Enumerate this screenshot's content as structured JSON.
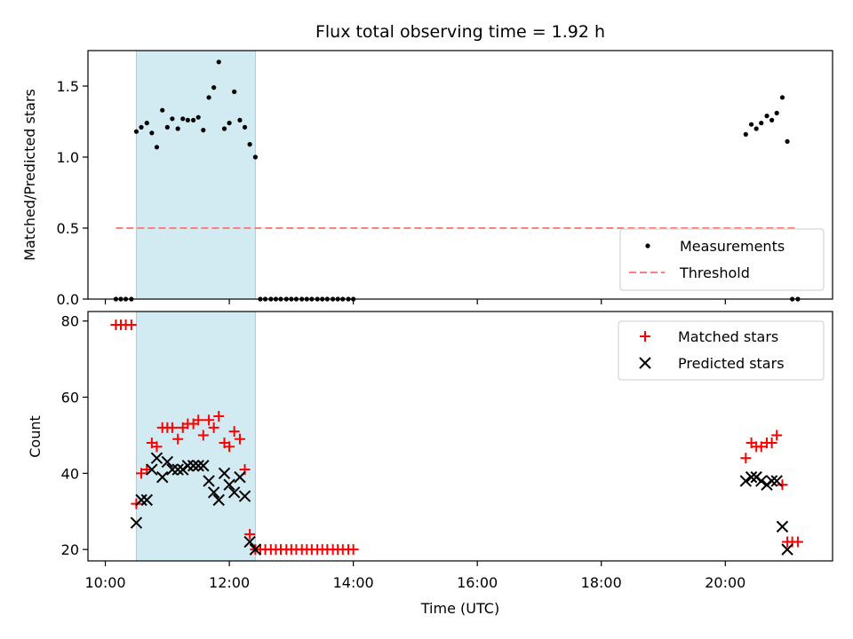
{
  "chart_data": {
    "type": "scatter",
    "title": "Flux total observing time = 1.92 h",
    "xlabel": "Time (UTC)",
    "x_unit": "hours UTC",
    "x_ticks": [
      "10:00",
      "12:00",
      "14:00",
      "16:00",
      "18:00",
      "20:00"
    ],
    "x_tick_values": [
      10,
      12,
      14,
      16,
      18,
      20
    ],
    "xlim": [
      9.72,
      21.73
    ],
    "shaded_interval": [
      10.5,
      12.42
    ],
    "shade_color": "#add8e6",
    "panels": [
      {
        "name": "ratio",
        "ylabel": "Matched/Predicted stars",
        "ylim": [
          0.0,
          1.75
        ],
        "y_ticks": [
          "0.0",
          "0.5",
          "1.0",
          "1.5"
        ],
        "y_tick_values": [
          0.0,
          0.5,
          1.0,
          1.5
        ],
        "legend_position": "lower right",
        "series": [
          {
            "name": "Measurements",
            "marker": "dot",
            "color": "#000000",
            "points": [
              [
                10.17,
                0
              ],
              [
                10.25,
                0
              ],
              [
                10.33,
                0
              ],
              [
                10.42,
                0
              ],
              [
                10.5,
                1.18
              ],
              [
                10.58,
                1.21
              ],
              [
                10.67,
                1.24
              ],
              [
                10.75,
                1.17
              ],
              [
                10.83,
                1.07
              ],
              [
                10.92,
                1.33
              ],
              [
                11.0,
                1.21
              ],
              [
                11.08,
                1.27
              ],
              [
                11.17,
                1.2
              ],
              [
                11.25,
                1.27
              ],
              [
                11.33,
                1.26
              ],
              [
                11.42,
                1.26
              ],
              [
                11.5,
                1.28
              ],
              [
                11.58,
                1.19
              ],
              [
                11.67,
                1.42
              ],
              [
                11.75,
                1.49
              ],
              [
                11.83,
                1.67
              ],
              [
                11.92,
                1.2
              ],
              [
                12.0,
                1.24
              ],
              [
                12.08,
                1.46
              ],
              [
                12.17,
                1.26
              ],
              [
                12.25,
                1.21
              ],
              [
                12.33,
                1.09
              ],
              [
                12.42,
                1.0
              ],
              [
                12.5,
                0
              ],
              [
                12.58,
                0
              ],
              [
                12.67,
                0
              ],
              [
                12.75,
                0
              ],
              [
                12.83,
                0
              ],
              [
                12.92,
                0
              ],
              [
                13.0,
                0
              ],
              [
                13.08,
                0
              ],
              [
                13.17,
                0
              ],
              [
                13.25,
                0
              ],
              [
                13.33,
                0
              ],
              [
                13.42,
                0
              ],
              [
                13.5,
                0
              ],
              [
                13.58,
                0
              ],
              [
                13.67,
                0
              ],
              [
                13.75,
                0
              ],
              [
                13.83,
                0
              ],
              [
                13.92,
                0
              ],
              [
                14.0,
                0
              ],
              [
                20.33,
                1.16
              ],
              [
                20.42,
                1.23
              ],
              [
                20.5,
                1.2
              ],
              [
                20.58,
                1.24
              ],
              [
                20.67,
                1.29
              ],
              [
                20.75,
                1.26
              ],
              [
                20.83,
                1.31
              ],
              [
                20.92,
                1.42
              ],
              [
                21.0,
                1.11
              ],
              [
                21.08,
                0
              ],
              [
                21.17,
                0
              ]
            ]
          },
          {
            "name": "Threshold",
            "marker": "dashed-line",
            "color": "#ff7f7f",
            "value": 0.5,
            "x_range": [
              10.17,
              21.17
            ]
          }
        ]
      },
      {
        "name": "counts",
        "ylabel": "Count",
        "ylim": [
          17,
          82.5
        ],
        "y_ticks": [
          "20",
          "40",
          "60",
          "80"
        ],
        "y_tick_values": [
          20,
          40,
          60,
          80
        ],
        "legend_position": "upper right",
        "series": [
          {
            "name": "Matched stars",
            "marker": "plus",
            "color": "#ff0000",
            "points": [
              [
                10.17,
                79
              ],
              [
                10.25,
                79
              ],
              [
                10.33,
                79
              ],
              [
                10.42,
                79
              ],
              [
                10.5,
                32
              ],
              [
                10.58,
                40
              ],
              [
                10.67,
                41
              ],
              [
                10.75,
                48
              ],
              [
                10.83,
                47
              ],
              [
                10.92,
                52
              ],
              [
                11.0,
                52
              ],
              [
                11.08,
                52
              ],
              [
                11.17,
                49
              ],
              [
                11.25,
                52
              ],
              [
                11.33,
                53
              ],
              [
                11.42,
                53
              ],
              [
                11.5,
                54
              ],
              [
                11.58,
                50
              ],
              [
                11.67,
                54
              ],
              [
                11.75,
                52
              ],
              [
                11.83,
                55
              ],
              [
                11.92,
                48
              ],
              [
                12.0,
                47
              ],
              [
                12.08,
                51
              ],
              [
                12.17,
                49
              ],
              [
                12.25,
                41
              ],
              [
                12.33,
                24
              ],
              [
                12.42,
                20
              ],
              [
                12.5,
                20
              ],
              [
                12.58,
                20
              ],
              [
                12.67,
                20
              ],
              [
                12.75,
                20
              ],
              [
                12.83,
                20
              ],
              [
                12.92,
                20
              ],
              [
                13.0,
                20
              ],
              [
                13.08,
                20
              ],
              [
                13.17,
                20
              ],
              [
                13.25,
                20
              ],
              [
                13.33,
                20
              ],
              [
                13.42,
                20
              ],
              [
                13.5,
                20
              ],
              [
                13.58,
                20
              ],
              [
                13.67,
                20
              ],
              [
                13.75,
                20
              ],
              [
                13.83,
                20
              ],
              [
                13.92,
                20
              ],
              [
                14.0,
                20
              ],
              [
                20.33,
                44
              ],
              [
                20.42,
                48
              ],
              [
                20.5,
                47
              ],
              [
                20.58,
                47
              ],
              [
                20.67,
                48
              ],
              [
                20.75,
                48
              ],
              [
                20.83,
                50
              ],
              [
                20.92,
                37
              ],
              [
                21.0,
                22
              ],
              [
                21.08,
                22
              ],
              [
                21.17,
                22
              ]
            ]
          },
          {
            "name": "Predicted stars",
            "marker": "x",
            "color": "#000000",
            "points": [
              [
                10.5,
                27
              ],
              [
                10.58,
                33
              ],
              [
                10.67,
                33
              ],
              [
                10.75,
                41
              ],
              [
                10.83,
                44
              ],
              [
                10.92,
                39
              ],
              [
                11.0,
                43
              ],
              [
                11.08,
                41
              ],
              [
                11.17,
                41
              ],
              [
                11.25,
                41
              ],
              [
                11.33,
                42
              ],
              [
                11.42,
                42
              ],
              [
                11.5,
                42
              ],
              [
                11.58,
                42
              ],
              [
                11.67,
                38
              ],
              [
                11.75,
                35
              ],
              [
                11.83,
                33
              ],
              [
                11.92,
                40
              ],
              [
                12.0,
                37
              ],
              [
                12.08,
                35
              ],
              [
                12.17,
                39
              ],
              [
                12.25,
                34
              ],
              [
                12.33,
                22
              ],
              [
                12.42,
                20
              ],
              [
                20.33,
                38
              ],
              [
                20.42,
                39
              ],
              [
                20.5,
                39
              ],
              [
                20.58,
                38
              ],
              [
                20.67,
                37
              ],
              [
                20.75,
                38
              ],
              [
                20.83,
                38
              ],
              [
                20.92,
                26
              ],
              [
                21.0,
                20
              ]
            ]
          }
        ]
      }
    ]
  }
}
